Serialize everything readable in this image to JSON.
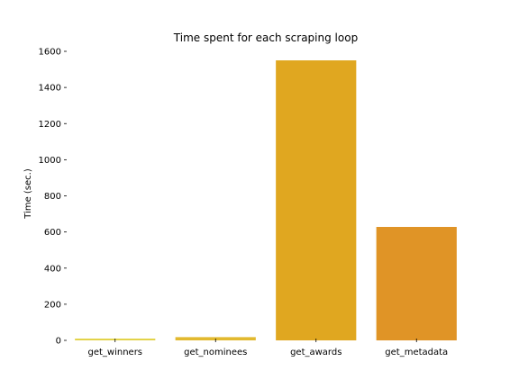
{
  "chart_data": {
    "type": "bar",
    "title": "Time spent for each scraping loop",
    "xlabel": "",
    "ylabel": "Time (sec.)",
    "categories": [
      "get_winners",
      "get_nominees",
      "get_awards",
      "get_metadata"
    ],
    "values": [
      10,
      18,
      1550,
      628
    ],
    "colors": [
      "#e3d34a",
      "#e2b92f",
      "#e0a720",
      "#e09426"
    ],
    "ylim": [
      0,
      1600
    ],
    "yticks": [
      0,
      200,
      400,
      600,
      800,
      1000,
      1200,
      1400,
      1600
    ],
    "grid": false,
    "legend": "none"
  }
}
